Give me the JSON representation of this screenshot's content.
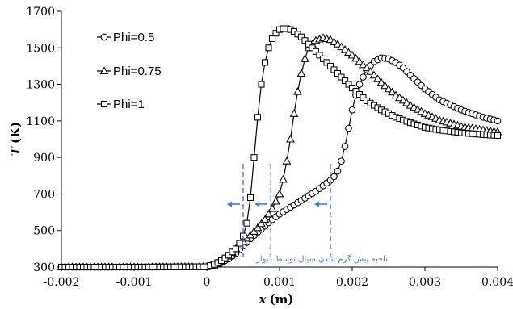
{
  "chart_data": {
    "type": "line",
    "xlabel": "x (m)",
    "xlabel_var": "x",
    "xlabel_unit": "(m)",
    "ylabel": "T (K)",
    "ylabel_var": "T",
    "ylabel_unit": "(K)",
    "xlim": [
      -0.002,
      0.004
    ],
    "ylim": [
      300,
      1700
    ],
    "xticks": [
      "-0.002",
      "-0.001",
      "0",
      "0.001",
      "0.002",
      "0.003",
      "0.004"
    ],
    "xtick_values": [
      -0.002,
      -0.001,
      0,
      0.001,
      0.002,
      0.003,
      0.004
    ],
    "yticks": [
      "300",
      "500",
      "700",
      "900",
      "1100",
      "1300",
      "1500",
      "1700"
    ],
    "ytick_values": [
      300,
      500,
      700,
      900,
      1100,
      1300,
      1500,
      1700
    ],
    "grid": false,
    "legend_position": "top-left",
    "series": [
      {
        "name": "Phi=0.5",
        "marker": "circle",
        "x": [
          -0.002,
          -0.001,
          0.0,
          0.0001,
          0.0002,
          0.0003,
          0.0004,
          0.0005,
          0.0006,
          0.0007,
          0.0008,
          0.0009,
          0.001,
          0.0011,
          0.0012,
          0.0013,
          0.0014,
          0.0015,
          0.0016,
          0.0017,
          0.00175,
          0.0018,
          0.00185,
          0.0019,
          0.00195,
          0.002,
          0.00205,
          0.0021,
          0.0022,
          0.0023,
          0.0024,
          0.0025,
          0.0026,
          0.0027,
          0.0028,
          0.003,
          0.0032,
          0.0035,
          0.0038,
          0.004
        ],
        "y": [
          300,
          300,
          302,
          310,
          325,
          345,
          375,
          415,
          455,
          490,
          525,
          560,
          590,
          615,
          640,
          665,
          690,
          715,
          745,
          775,
          795,
          825,
          880,
          960,
          1060,
          1160,
          1240,
          1300,
          1380,
          1425,
          1445,
          1440,
          1420,
          1390,
          1350,
          1275,
          1215,
          1160,
          1120,
          1100
        ]
      },
      {
        "name": "Phi=0.75",
        "marker": "triangle",
        "x": [
          -0.002,
          -0.001,
          0.0,
          0.0001,
          0.0002,
          0.0003,
          0.0004,
          0.0005,
          0.0006,
          0.0007,
          0.0008,
          0.0009,
          0.001,
          0.00105,
          0.0011,
          0.00115,
          0.0012,
          0.00125,
          0.0013,
          0.00135,
          0.0014,
          0.0015,
          0.0016,
          0.0017,
          0.0018,
          0.0019,
          0.002,
          0.0022,
          0.0024,
          0.0026,
          0.0028,
          0.003,
          0.0032,
          0.0035,
          0.0038,
          0.004
        ],
        "y": [
          300,
          300,
          302,
          310,
          330,
          360,
          400,
          440,
          475,
          515,
          560,
          620,
          700,
          780,
          880,
          1000,
          1140,
          1260,
          1360,
          1440,
          1500,
          1540,
          1555,
          1545,
          1520,
          1490,
          1460,
          1390,
          1310,
          1240,
          1185,
          1140,
          1105,
          1070,
          1050,
          1040
        ]
      },
      {
        "name": "Phi=1",
        "marker": "square",
        "x": [
          -0.002,
          -0.001,
          0.0,
          0.0001,
          0.0002,
          0.0003,
          0.0004,
          0.00045,
          0.0005,
          0.00055,
          0.0006,
          0.00065,
          0.0007,
          0.00075,
          0.0008,
          0.00085,
          0.0009,
          0.00095,
          0.001,
          0.00105,
          0.0011,
          0.00115,
          0.0012,
          0.0013,
          0.0014,
          0.0015,
          0.0016,
          0.0018,
          0.002,
          0.0022,
          0.0024,
          0.0026,
          0.0028,
          0.003,
          0.0032,
          0.0035,
          0.0038,
          0.004
        ],
        "y": [
          300,
          300,
          302,
          315,
          335,
          365,
          400,
          430,
          470,
          540,
          680,
          900,
          1120,
          1300,
          1420,
          1500,
          1550,
          1580,
          1600,
          1605,
          1605,
          1600,
          1590,
          1560,
          1520,
          1480,
          1440,
          1360,
          1280,
          1210,
          1160,
          1120,
          1090,
          1065,
          1050,
          1035,
          1025,
          1020
        ]
      }
    ],
    "annotation": {
      "text": "ناحیه پیش گرم شدن سیال توسط دیوار",
      "dashed_lines_x": [
        0.0005,
        0.00088,
        0.0017
      ]
    }
  }
}
